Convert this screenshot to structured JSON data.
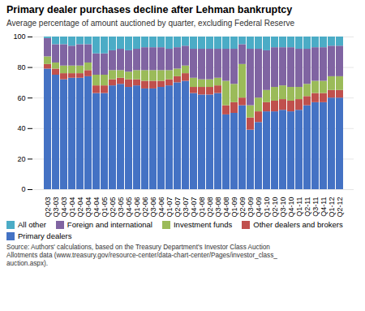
{
  "chart_data": {
    "type": "bar",
    "stacked": true,
    "title": "Primary dealer purchases decline after Lehman bankruptcy",
    "subtitle": "Average percentage of amount auctioned by quarter, excluding Federal Reserve",
    "source": "Source: Authors' calculations, based on the Treasury Department's Investor Class Auction\nAllotments data (www.treasury.gov/resource-center/data-chart-center/Pages/investor_class_\nauction.aspx).",
    "categories": [
      "Q2-03",
      "Q3-03",
      "Q4-03",
      "Q1-04",
      "Q2-04",
      "Q3-04",
      "Q4-04",
      "Q1-05",
      "Q2-05",
      "Q3-05",
      "Q4-05",
      "Q1-06",
      "Q2-06",
      "Q3-06",
      "Q4-06",
      "Q1-07",
      "Q2-07",
      "Q3-07",
      "Q4-07",
      "Q1-08",
      "Q2-08",
      "Q3-08",
      "Q4-08",
      "Q1-09",
      "Q2-09",
      "Q3-09",
      "Q4-09",
      "Q1-10",
      "Q2-10",
      "Q3-10",
      "Q4-10",
      "Q1-11",
      "Q2-11",
      "Q3-11",
      "Q4-11",
      "Q1-12",
      "Q2-12"
    ],
    "series": [
      {
        "name": "Primary dealers",
        "color": "#4472C4",
        "values": [
          79,
          75,
          72,
          73,
          73,
          74,
          63,
          63,
          68,
          69,
          67,
          68,
          66,
          66,
          67,
          68,
          70,
          71,
          63,
          62,
          62,
          63,
          49,
          50,
          55,
          39,
          44,
          51,
          51,
          52,
          51,
          52,
          55,
          57,
          57,
          60,
          60
        ]
      },
      {
        "name": "Other dealers and brokers",
        "color": "#C0504D",
        "values": [
          3,
          4,
          4,
          3,
          3,
          4,
          5,
          5,
          4,
          4,
          5,
          4,
          5,
          5,
          4,
          4,
          4,
          5,
          4,
          5,
          5,
          5,
          6,
          7,
          5,
          8,
          7,
          6,
          7,
          7,
          7,
          7,
          6,
          6,
          6,
          5,
          5
        ]
      },
      {
        "name": "Investment funds",
        "color": "#9BBB59",
        "values": [
          5,
          4,
          5,
          5,
          5,
          5,
          7,
          7,
          6,
          5,
          5,
          6,
          7,
          7,
          7,
          6,
          5,
          5,
          6,
          5,
          5,
          5,
          16,
          12,
          22,
          8,
          9,
          8,
          9,
          9,
          9,
          8,
          8,
          8,
          8,
          9,
          9
        ]
      },
      {
        "name": "Foreign and international",
        "color": "#8064A2",
        "values": [
          12,
          12,
          14,
          13,
          14,
          12,
          14,
          14,
          13,
          14,
          14,
          14,
          15,
          15,
          15,
          14,
          14,
          13,
          19,
          20,
          20,
          19,
          21,
          23,
          13,
          37,
          32,
          26,
          26,
          25,
          26,
          25,
          23,
          22,
          22,
          20,
          20
        ]
      },
      {
        "name": "All other",
        "color": "#4BACC6",
        "values": [
          1,
          5,
          5,
          6,
          5,
          5,
          11,
          11,
          9,
          8,
          9,
          8,
          7,
          7,
          7,
          8,
          7,
          6,
          8,
          8,
          8,
          8,
          8,
          8,
          5,
          8,
          8,
          9,
          7,
          7,
          7,
          8,
          8,
          7,
          7,
          6,
          6
        ]
      }
    ],
    "ylim": [
      0,
      100
    ],
    "yticks": [
      0,
      20,
      40,
      60,
      80,
      100
    ],
    "grid": true,
    "legend": "bottom"
  }
}
